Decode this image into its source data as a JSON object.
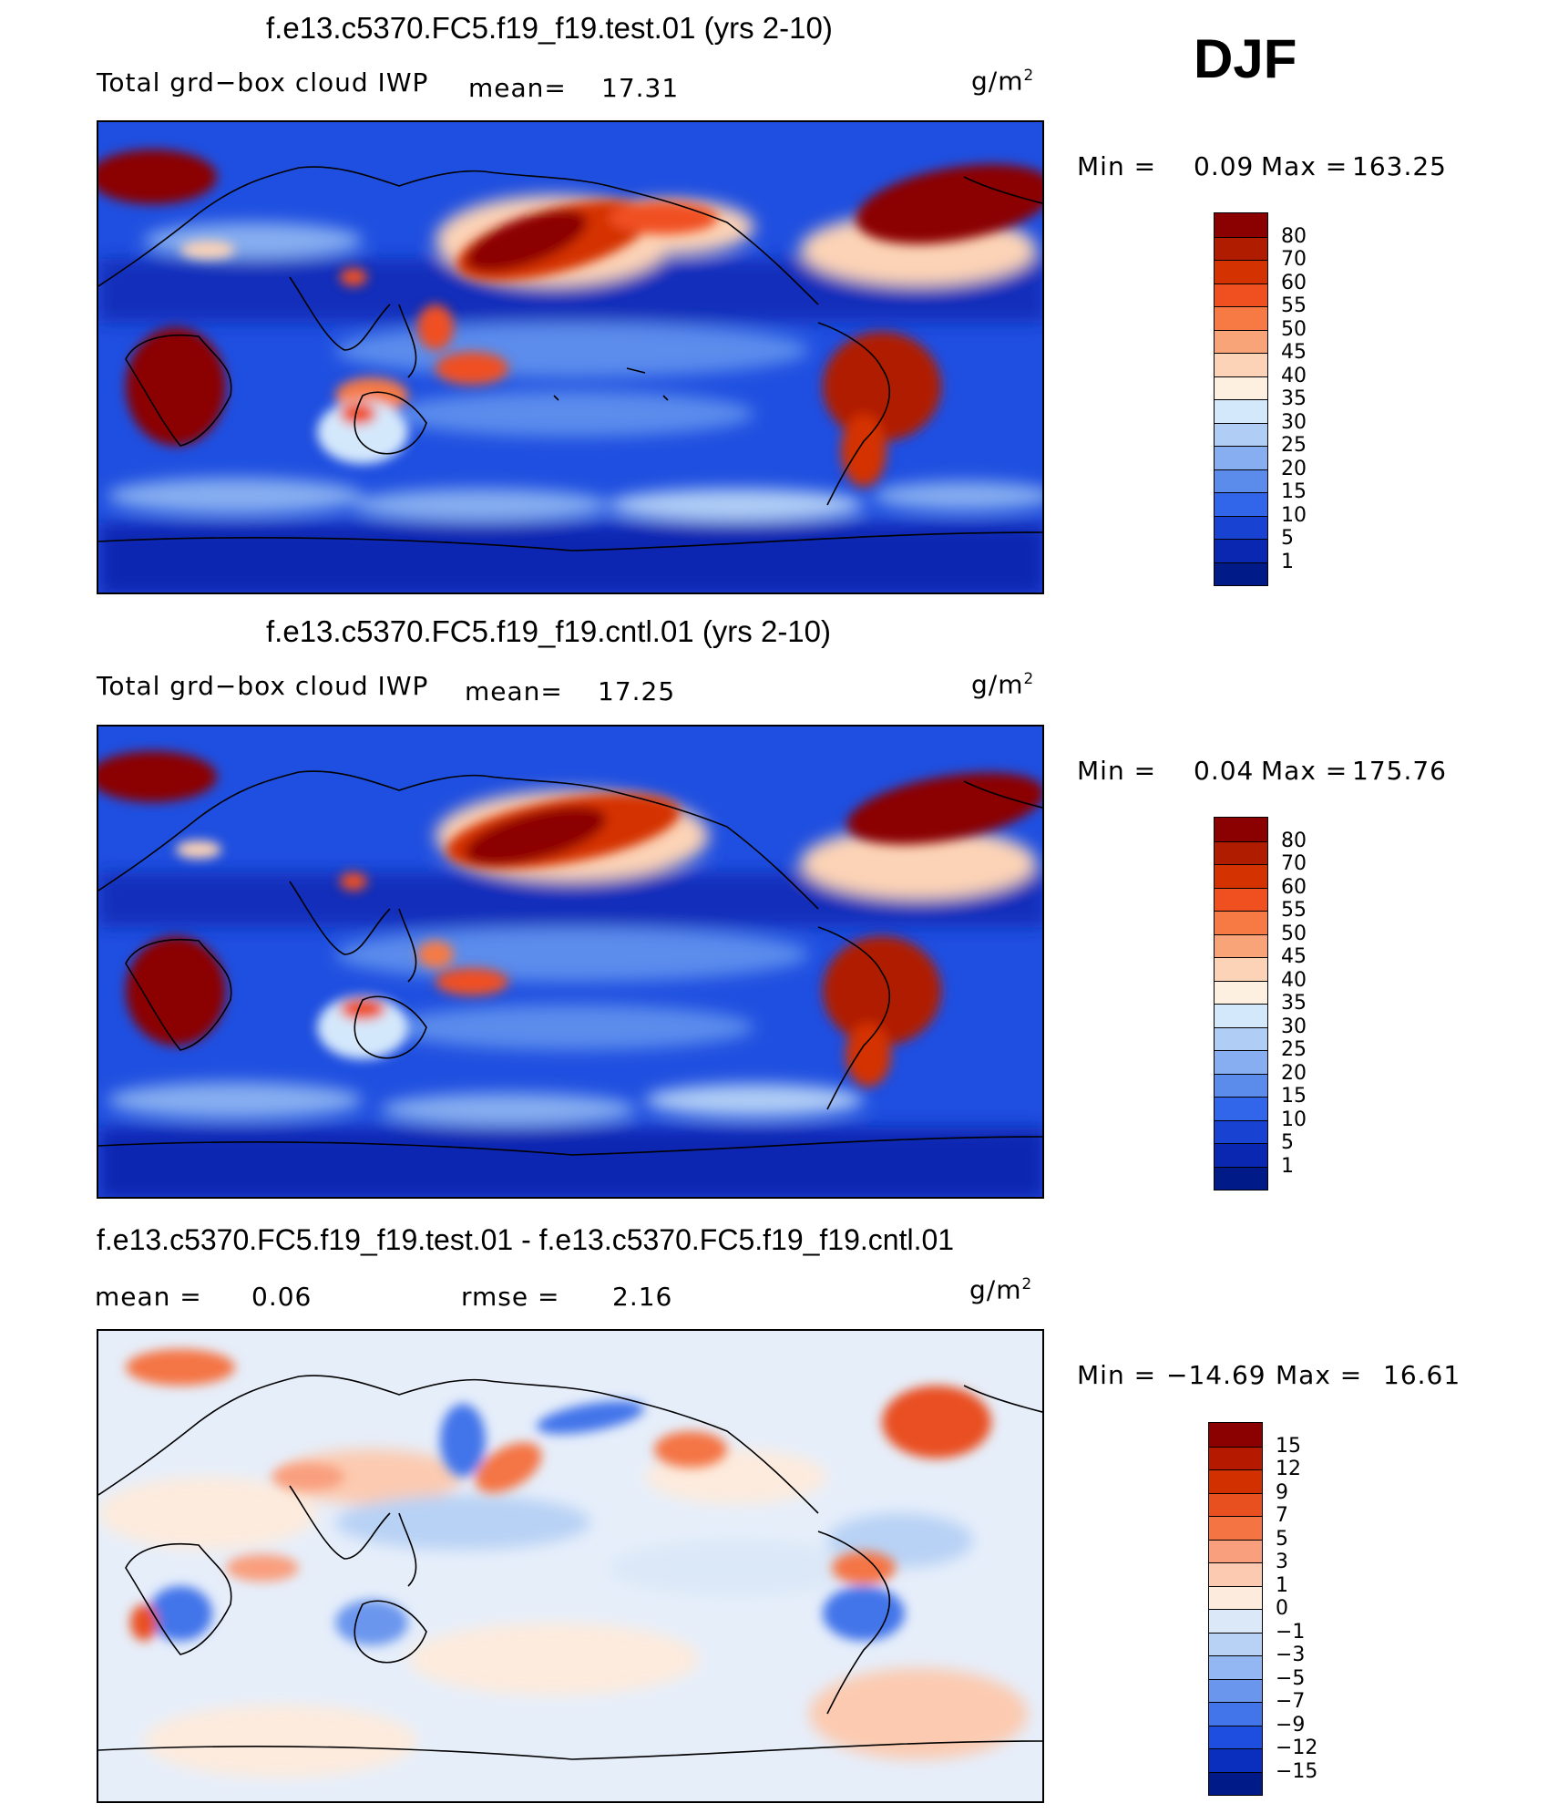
{
  "season": "DJF",
  "panels": [
    {
      "title": "f.e13.c5370.FC5.f19_f19.test.01 (yrs 2-10)",
      "left_label": "Total grd−box cloud IWP",
      "mean_label": "mean=",
      "mean_value": "17.31",
      "units": "g/m",
      "units_exp": "2",
      "min_label": "Min =",
      "min_value": "0.09",
      "max_label": "Max =",
      "max_value": "163.25",
      "colorbar_levels": [
        "80",
        "70",
        "60",
        "55",
        "50",
        "45",
        "40",
        "35",
        "30",
        "25",
        "20",
        "15",
        "10",
        "5",
        "1"
      ],
      "colorbar_colors": [
        "#8b0000",
        "#b01c00",
        "#d43200",
        "#f05020",
        "#f77a45",
        "#f9a378",
        "#fcd3b6",
        "#fdf0e0",
        "#d4e8fb",
        "#b0cdf5",
        "#86aef0",
        "#5b8cec",
        "#3266ea",
        "#1742d2",
        "#0a27b2",
        "#001a88"
      ]
    },
    {
      "title": "f.e13.c5370.FC5.f19_f19.cntl.01 (yrs 2-10)",
      "left_label": "Total grd−box cloud IWP",
      "mean_label": "mean=",
      "mean_value": "17.25",
      "units": "g/m",
      "units_exp": "2",
      "min_label": "Min =",
      "min_value": "0.04",
      "max_label": "Max =",
      "max_value": "175.76",
      "colorbar_levels": [
        "80",
        "70",
        "60",
        "55",
        "50",
        "45",
        "40",
        "35",
        "30",
        "25",
        "20",
        "15",
        "10",
        "5",
        "1"
      ],
      "colorbar_colors": [
        "#8b0000",
        "#b01c00",
        "#d43200",
        "#f05020",
        "#f77a45",
        "#f9a378",
        "#fcd3b6",
        "#fdf0e0",
        "#d4e8fb",
        "#b0cdf5",
        "#86aef0",
        "#5b8cec",
        "#3266ea",
        "#1742d2",
        "#0a27b2",
        "#001a88"
      ]
    },
    {
      "title": "f.e13.c5370.FC5.f19_f19.test.01 - f.e13.c5370.FC5.f19_f19.cntl.01",
      "mean_label": "mean =",
      "mean_value": "0.06",
      "rmse_label": "rmse =",
      "rmse_value": "2.16",
      "units": "g/m",
      "units_exp": "2",
      "min_label": "Min =",
      "min_value": "−14.69",
      "max_label": "Max =",
      "max_value": "16.61",
      "colorbar_levels": [
        "15",
        "12",
        "9",
        "7",
        "5",
        "3",
        "1",
        "0",
        "−1",
        "−3",
        "−5",
        "−7",
        "−9",
        "−12",
        "−15"
      ],
      "colorbar_colors": [
        "#8b0000",
        "#b51a00",
        "#d33000",
        "#e95020",
        "#f47444",
        "#f99f7e",
        "#fccab0",
        "#fdebdd",
        "#dbe8f8",
        "#b8d2f5",
        "#92b7f2",
        "#6a96ee",
        "#4274ea",
        "#1d4ee0",
        "#0a2fbe",
        "#001a88"
      ]
    }
  ],
  "chart_data": [
    {
      "type": "heatmap",
      "title": "f.e13.c5370.FC5.f19_f19.test.01 (yrs 2-10)",
      "variable": "Total grd−box cloud IWP",
      "units": "g/m2",
      "season": "DJF",
      "mean": 17.31,
      "min": 0.09,
      "max": 163.25,
      "contour_levels": [
        1,
        5,
        10,
        15,
        20,
        25,
        30,
        35,
        40,
        45,
        50,
        55,
        60,
        70,
        80
      ]
    },
    {
      "type": "heatmap",
      "title": "f.e13.c5370.FC5.f19_f19.cntl.01 (yrs 2-10)",
      "variable": "Total grd−box cloud IWP",
      "units": "g/m2",
      "season": "DJF",
      "mean": 17.25,
      "min": 0.04,
      "max": 175.76,
      "contour_levels": [
        1,
        5,
        10,
        15,
        20,
        25,
        30,
        35,
        40,
        45,
        50,
        55,
        60,
        70,
        80
      ]
    },
    {
      "type": "heatmap",
      "title": "f.e13.c5370.FC5.f19_f19.test.01 - f.e13.c5370.FC5.f19_f19.cntl.01",
      "units": "g/m2",
      "season": "DJF",
      "mean": 0.06,
      "rmse": 2.16,
      "min": -14.69,
      "max": 16.61,
      "contour_levels": [
        -15,
        -12,
        -9,
        -7,
        -5,
        -3,
        -1,
        0,
        1,
        3,
        5,
        7,
        9,
        12,
        15
      ]
    }
  ]
}
